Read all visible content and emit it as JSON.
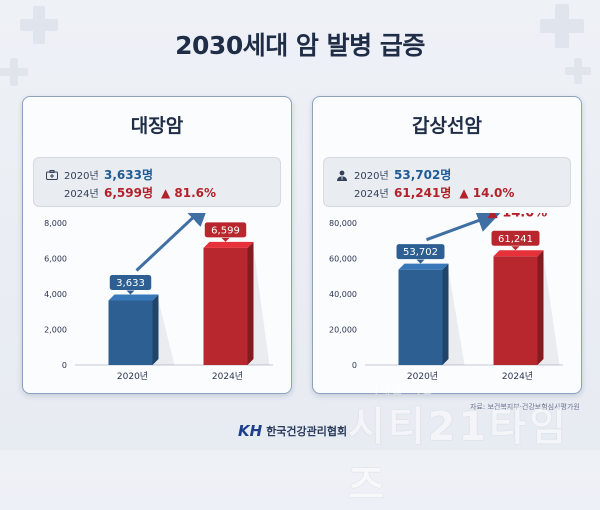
{
  "headline": "2030세대 암 발병 급증",
  "panels": [
    {
      "title": "대장암",
      "icon": "briefcase-medical-icon",
      "stats": {
        "y1_label": "2020년",
        "y1_value": "3,633명",
        "y2_label": "2024년",
        "y2_value": "6,599명",
        "change": "▲ 81.6%"
      }
    },
    {
      "title": "갑상선암",
      "icon": "doctor-icon",
      "stats": {
        "y1_label": "2020년",
        "y1_value": "53,702명",
        "y2_label": "2024년",
        "y2_value": "61,241명",
        "change": "▲ 14.0%"
      }
    }
  ],
  "chart_data": [
    {
      "type": "bar",
      "title": "대장암",
      "categories": [
        "2020년",
        "2024년"
      ],
      "values": [
        3633,
        6599
      ],
      "value_labels": [
        "3,633",
        "6,599"
      ],
      "ylim": [
        0,
        8000
      ],
      "yticks": [
        "0",
        "2,000",
        "4,000",
        "6,000",
        "8,000"
      ],
      "ytick_values": [
        0,
        2000,
        4000,
        6000,
        8000
      ],
      "annotation": "▲ 81.6%",
      "colors": [
        "#2d5f93",
        "#b8262e"
      ]
    },
    {
      "type": "bar",
      "title": "갑상선암",
      "categories": [
        "2020년",
        "2024년"
      ],
      "values": [
        53702,
        61241
      ],
      "value_labels": [
        "53,702",
        "61,241"
      ],
      "ylim": [
        0,
        80000
      ],
      "yticks": [
        "0",
        "20,000",
        "40,000",
        "60,000",
        "80,000"
      ],
      "ytick_values": [
        0,
        20000,
        40000,
        60000,
        80000
      ],
      "annotation": "▲ 14.0%",
      "colors": [
        "#2d5f93",
        "#b8262e"
      ]
    }
  ],
  "footer": {
    "org_logo": "KH",
    "org_name": "한국건강관리협회",
    "source": "자료: 보건복지부·건강보험심사평가원"
  },
  "watermark": {
    "sub": "미래를 여는",
    "main": "시티21타임즈"
  }
}
